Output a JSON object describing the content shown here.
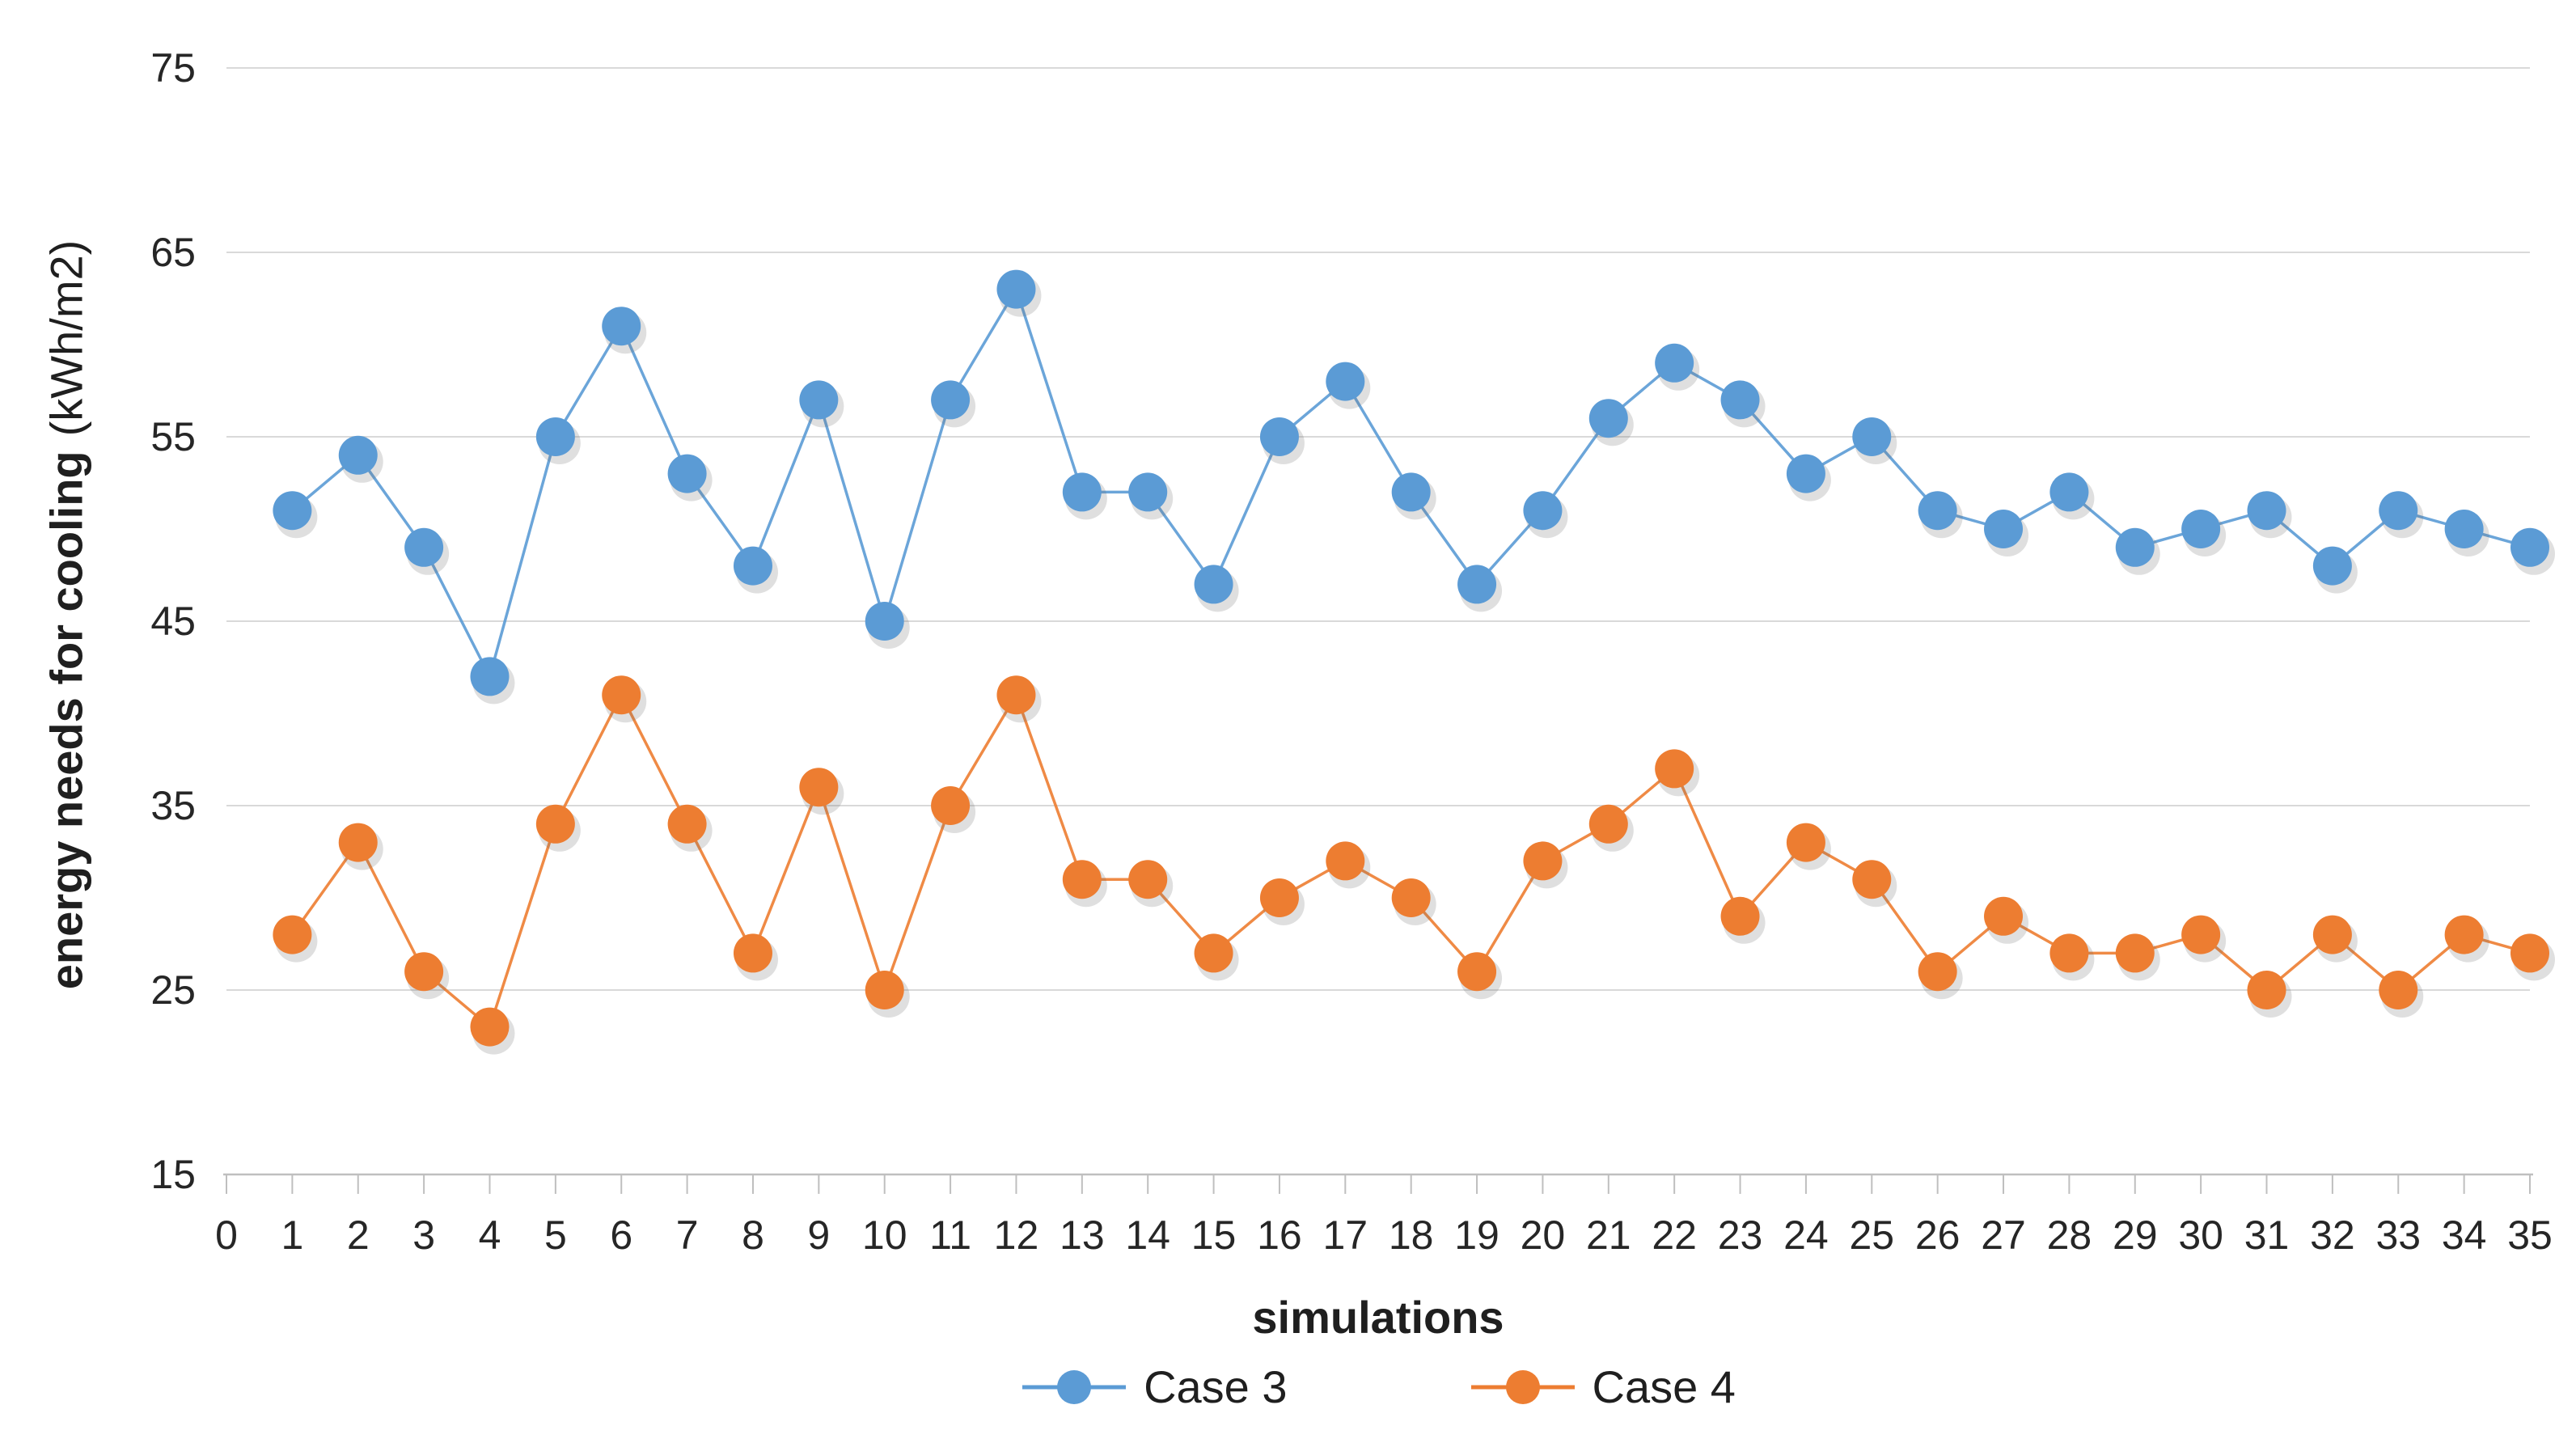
{
  "chart_data": {
    "type": "line",
    "title": "",
    "xlabel": "simulations",
    "ylabel": "energy needs for cooling",
    "ylabel_unit": "(kWh/m2)",
    "xlim": [
      0,
      35
    ],
    "ylim": [
      15,
      75
    ],
    "y_ticks": [
      75,
      65,
      55,
      45,
      35,
      25,
      15
    ],
    "x_ticks": [
      0,
      1,
      2,
      3,
      4,
      5,
      6,
      7,
      8,
      9,
      10,
      11,
      12,
      13,
      14,
      15,
      16,
      17,
      18,
      19,
      20,
      21,
      22,
      23,
      24,
      25,
      26,
      27,
      28,
      29,
      30,
      31,
      32,
      33,
      34,
      35
    ],
    "grid": true,
    "legend_position": "bottom-center",
    "x": [
      1,
      2,
      3,
      4,
      5,
      6,
      7,
      8,
      9,
      10,
      11,
      12,
      13,
      14,
      15,
      16,
      17,
      18,
      19,
      20,
      21,
      22,
      23,
      24,
      25,
      26,
      27,
      28,
      29,
      30,
      31,
      32,
      33,
      34,
      35
    ],
    "series": [
      {
        "name": "Case 3",
        "color": "#5B9BD5",
        "values": [
          51,
          54,
          49,
          42,
          55,
          61,
          53,
          48,
          57,
          45,
          57,
          63,
          52,
          52,
          47,
          55,
          58,
          52,
          47,
          51,
          56,
          59,
          57,
          53,
          55,
          51,
          50,
          52,
          49,
          50,
          51,
          48,
          51,
          50,
          49
        ]
      },
      {
        "name": "Case 4",
        "color": "#ED7D31",
        "values": [
          28,
          33,
          26,
          23,
          34,
          41,
          34,
          27,
          36,
          25,
          35,
          41,
          31,
          31,
          27,
          30,
          32,
          30,
          26,
          32,
          34,
          37,
          29,
          33,
          31,
          26,
          29,
          27,
          27,
          28,
          25,
          28,
          25,
          28,
          27
        ]
      }
    ],
    "style": {
      "grid_color": "#D9D9D9",
      "axis_color": "#BFBFBF",
      "text_color": "#262626",
      "marker_radius": 24,
      "line_width": 3.5
    }
  }
}
